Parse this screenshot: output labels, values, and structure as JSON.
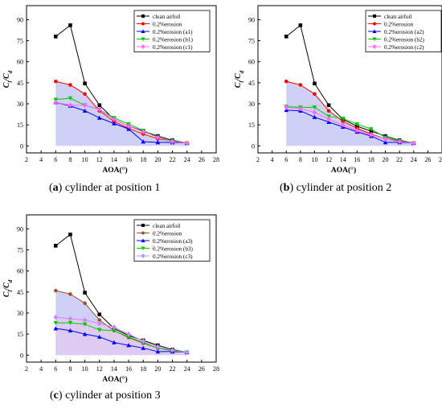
{
  "figure": {
    "panels": [
      {
        "id": "a",
        "caption_letter": "a",
        "caption_text": " cylinder at position 1"
      },
      {
        "id": "b",
        "caption_letter": "b",
        "caption_text": " cylinder at position 2"
      },
      {
        "id": "c",
        "caption_letter": "c",
        "caption_text": " cylinder at position 3"
      }
    ]
  },
  "chart_data": [
    {
      "type": "line",
      "panel": "a",
      "xlabel": "AOA(°)",
      "ylabel": "Cl/Cd",
      "xlim": [
        2,
        28
      ],
      "ylim": [
        -5,
        100
      ],
      "xticks": [
        2,
        4,
        6,
        8,
        10,
        12,
        14,
        16,
        18,
        20,
        22,
        24,
        26,
        28
      ],
      "yticks": [
        0,
        15,
        30,
        45,
        60,
        75,
        90
      ],
      "legend_position": "top-right",
      "series": [
        {
          "name": "clean airfoil",
          "color": "#000000",
          "marker": "square",
          "x": [
            6,
            8,
            10,
            12,
            14,
            16,
            18,
            20,
            22,
            24
          ],
          "y": [
            78,
            86,
            44.5,
            29,
            19,
            14,
            10.5,
            7,
            4,
            2
          ]
        },
        {
          "name": "0.2%erosion",
          "color": "#ff0000",
          "marker": "circle",
          "fill": true,
          "x": [
            6,
            8,
            10,
            12,
            14,
            16,
            18,
            20,
            22,
            24
          ],
          "y": [
            46,
            43.5,
            37,
            25,
            17.5,
            12.5,
            8.5,
            5,
            3.5,
            2
          ]
        },
        {
          "name": "0.2%erosion (a1)",
          "color": "#0000ff",
          "marker": "triangle-up",
          "x": [
            6,
            8,
            10,
            12,
            14,
            16,
            18,
            20,
            22,
            24
          ],
          "y": [
            31,
            28.5,
            25,
            20,
            16,
            12,
            3,
            2.5,
            2.5,
            2
          ]
        },
        {
          "name": "0.2%erosion (b1)",
          "color": "#00cc00",
          "marker": "triangle-down",
          "x": [
            6,
            8,
            10,
            12,
            14,
            16,
            18,
            20,
            22,
            24
          ],
          "y": [
            33,
            34,
            29,
            26,
            20,
            15.5,
            11,
            6,
            3.5,
            2
          ]
        },
        {
          "name": "0.2%erosion (c1)",
          "color": "#ff66ff",
          "marker": "diamond",
          "x": [
            6,
            8,
            10,
            12,
            14,
            16,
            18,
            20,
            22,
            24
          ],
          "y": [
            31,
            29,
            29,
            26,
            19,
            14,
            10,
            6,
            3,
            2
          ]
        }
      ]
    },
    {
      "type": "line",
      "panel": "b",
      "xlabel": "AOA(°)",
      "ylabel": "Cl/Cd",
      "xlim": [
        2,
        28
      ],
      "ylim": [
        -5,
        100
      ],
      "xticks": [
        2,
        4,
        6,
        8,
        10,
        12,
        14,
        16,
        18,
        20,
        22,
        24,
        26,
        28
      ],
      "yticks": [
        0,
        15,
        30,
        45,
        60,
        75,
        90
      ],
      "legend_position": "top-right",
      "series": [
        {
          "name": "clean airfoil",
          "color": "#000000",
          "marker": "square",
          "x": [
            6,
            8,
            10,
            12,
            14,
            16,
            18,
            20,
            22,
            24
          ],
          "y": [
            78,
            86,
            44.5,
            29,
            19,
            14,
            10.5,
            7,
            4,
            2
          ]
        },
        {
          "name": "0.2%erosion",
          "color": "#ff0000",
          "marker": "circle",
          "fill": true,
          "x": [
            6,
            8,
            10,
            12,
            14,
            16,
            18,
            20,
            22,
            24
          ],
          "y": [
            46,
            43.5,
            37,
            25,
            17.5,
            12.5,
            8.5,
            5,
            3.5,
            2
          ]
        },
        {
          "name": "0.2%erosion (a2)",
          "color": "#0000ff",
          "marker": "triangle-up",
          "x": [
            6,
            8,
            10,
            12,
            14,
            16,
            18,
            20,
            22,
            24
          ],
          "y": [
            25.5,
            25,
            20.5,
            17,
            13.5,
            10,
            7,
            2.5,
            2.5,
            2
          ]
        },
        {
          "name": "0.2%erosion (b2)",
          "color": "#00cc00",
          "marker": "triangle-down",
          "x": [
            6,
            8,
            10,
            12,
            14,
            16,
            18,
            20,
            22,
            24
          ],
          "y": [
            28,
            27.5,
            27.5,
            21,
            19.5,
            15.5,
            12,
            6,
            3.5,
            2
          ]
        },
        {
          "name": "0.2%erosion (c2)",
          "color": "#ff66ff",
          "marker": "diamond",
          "x": [
            6,
            8,
            10,
            12,
            14,
            16,
            18,
            20,
            22,
            24
          ],
          "y": [
            27.5,
            26.5,
            24,
            19,
            15,
            11,
            8,
            5,
            3,
            2
          ]
        }
      ]
    },
    {
      "type": "line",
      "panel": "c",
      "xlabel": "AOA(°)",
      "ylabel": "Cl/Cd",
      "xlim": [
        2,
        28
      ],
      "ylim": [
        -5,
        100
      ],
      "xticks": [
        2,
        4,
        6,
        8,
        10,
        12,
        14,
        16,
        18,
        20,
        22,
        24,
        26,
        28
      ],
      "yticks": [
        0,
        15,
        30,
        45,
        60,
        75,
        90
      ],
      "legend_position": "top-right",
      "series": [
        {
          "name": "clean airfoil",
          "color": "#000000",
          "marker": "square",
          "x": [
            6,
            8,
            10,
            12,
            14,
            16,
            18,
            20,
            22,
            24
          ],
          "y": [
            78,
            86,
            44.5,
            29,
            19,
            14,
            10.5,
            7,
            4,
            2
          ]
        },
        {
          "name": "0.2%erosion",
          "color": "#a0522d",
          "marker": "circle",
          "fill": true,
          "x": [
            6,
            8,
            10,
            12,
            14,
            16,
            18,
            20,
            22,
            24
          ],
          "y": [
            46,
            43.5,
            37,
            25,
            17.5,
            12.5,
            8.5,
            5,
            3.5,
            2
          ]
        },
        {
          "name": "0.2%erosion (a3)",
          "color": "#0000ff",
          "marker": "triangle-up",
          "x": [
            6,
            8,
            10,
            12,
            14,
            16,
            18,
            20,
            22,
            24
          ],
          "y": [
            19,
            17.5,
            15,
            13,
            9,
            7,
            5,
            2.5,
            2.5,
            2
          ]
        },
        {
          "name": "0.2%erosion (b3)",
          "color": "#00cc00",
          "marker": "triangle-down",
          "x": [
            6,
            8,
            10,
            12,
            14,
            16,
            18,
            20,
            22,
            24
          ],
          "y": [
            23,
            23,
            22,
            18,
            17.5,
            13,
            9,
            5,
            3,
            2
          ]
        },
        {
          "name": "0.2%erosion (c3)",
          "color": "#cc88ff",
          "marker": "diamond",
          "x": [
            6,
            8,
            10,
            12,
            14,
            16,
            18,
            20,
            22,
            24
          ],
          "y": [
            27,
            26,
            25,
            22.5,
            20,
            15,
            10,
            6,
            3.5,
            2
          ]
        }
      ]
    }
  ]
}
